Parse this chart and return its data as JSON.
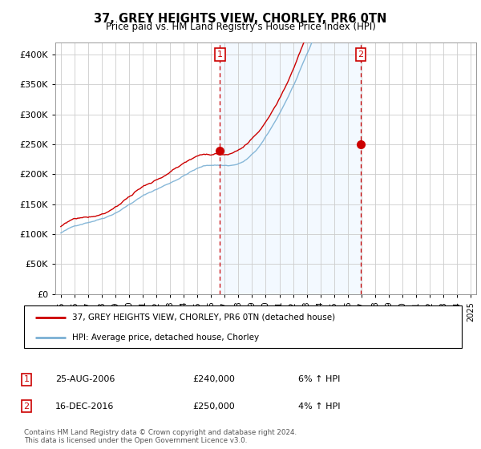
{
  "title": "37, GREY HEIGHTS VIEW, CHORLEY, PR6 0TN",
  "subtitle": "Price paid vs. HM Land Registry's House Price Index (HPI)",
  "legend_line1": "37, GREY HEIGHTS VIEW, CHORLEY, PR6 0TN (detached house)",
  "legend_line2": "HPI: Average price, detached house, Chorley",
  "annotation1_label": "1",
  "annotation1_date": "25-AUG-2006",
  "annotation1_price": "£240,000",
  "annotation1_hpi": "6% ↑ HPI",
  "annotation2_label": "2",
  "annotation2_date": "16-DEC-2016",
  "annotation2_price": "£250,000",
  "annotation2_hpi": "4% ↑ HPI",
  "footer": "Contains HM Land Registry data © Crown copyright and database right 2024.\nThis data is licensed under the Open Government Licence v3.0.",
  "red_color": "#cc0000",
  "blue_color": "#7ab0d4",
  "shading_color": "#ddeeff",
  "chart_bg": "#ffffff",
  "grid_color": "#cccccc",
  "ylim_min": 0,
  "ylim_max": 420000,
  "sale1_year": 2006.65,
  "sale1_price": 240000,
  "sale2_year": 2016.96,
  "sale2_price": 250000,
  "start_year": 1995,
  "end_year": 2025
}
